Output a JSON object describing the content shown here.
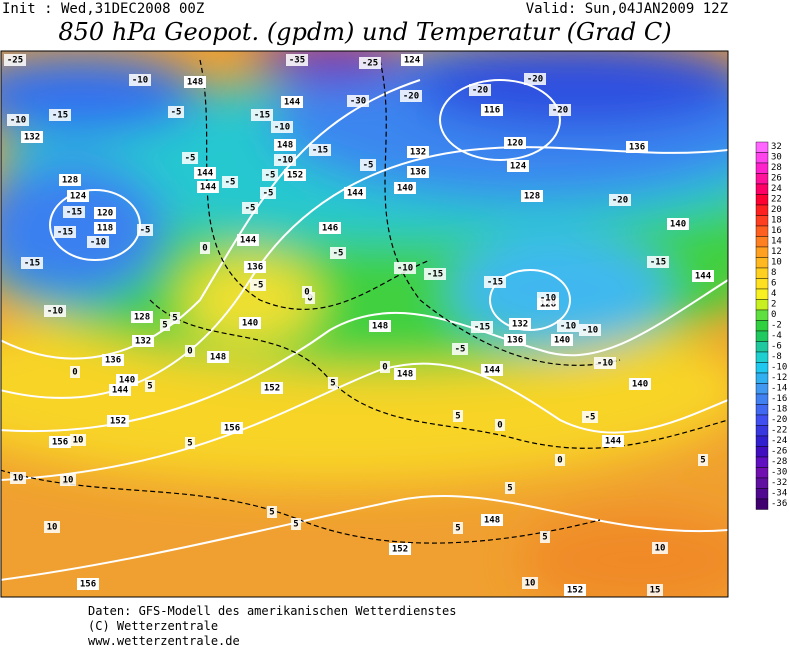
{
  "header": {
    "init": "Init : Wed,31DEC2008 00Z",
    "valid": "Valid: Sun,04JAN2009 12Z",
    "title": "850 hPa Geopot. (gpdm) und Temperatur (Grad C)"
  },
  "colorbar": {
    "levels": [
      32,
      30,
      28,
      26,
      24,
      22,
      20,
      18,
      16,
      14,
      12,
      10,
      8,
      6,
      4,
      2,
      0,
      -2,
      -4,
      -6,
      -8,
      -10,
      -12,
      -14,
      -16,
      -18,
      -20,
      -22,
      -24,
      -26,
      -28,
      -30,
      -32,
      -34,
      -36
    ],
    "colors": [
      "#ff66ff",
      "#ff44ee",
      "#ff22cc",
      "#ff1199",
      "#ff0066",
      "#ff0033",
      "#ff2020",
      "#ff4020",
      "#ff6020",
      "#ff8020",
      "#ffa020",
      "#ffb820",
      "#ffd020",
      "#ffe020",
      "#f8f020",
      "#c8f020",
      "#60e040",
      "#30d040",
      "#20c860",
      "#20c8a0",
      "#20d0d0",
      "#20c8f0",
      "#30b0f0",
      "#4098f0",
      "#4080f0",
      "#4068f0",
      "#4050f0",
      "#3838e0",
      "#3020d0",
      "#4010c0",
      "#6010c0",
      "#7010b0",
      "#6010a0",
      "#500890",
      "#400070"
    ]
  },
  "map": {
    "geopotential_labels": [
      148,
      144,
      132,
      128,
      124,
      120,
      118,
      144,
      144,
      148,
      152,
      144,
      136,
      140,
      148,
      146,
      144,
      140,
      136,
      132,
      116,
      120,
      124,
      128,
      136,
      140,
      144,
      128,
      132,
      136,
      140,
      144,
      148,
      148,
      152,
      156,
      152,
      156,
      144,
      140,
      136,
      132,
      128,
      148,
      152,
      152,
      156,
      140,
      144,
      124
    ],
    "temperature_labels": [
      -25,
      -35,
      -25,
      -30,
      -20,
      -20,
      -20,
      -20,
      -10,
      -10,
      -15,
      -5,
      -15,
      -10,
      -15,
      -10,
      -5,
      -5,
      -5,
      -5,
      -15,
      -15,
      -10,
      -5,
      -15,
      -10,
      -20,
      -15,
      -10,
      -15,
      -15,
      -10,
      -15,
      -10,
      -10,
      -10,
      -5,
      -5,
      -5,
      -5,
      0,
      0,
      0,
      5,
      5,
      0,
      5,
      0,
      5,
      5,
      10,
      10,
      10,
      10,
      5,
      5,
      5,
      5,
      5,
      10,
      10,
      15,
      5,
      5,
      0,
      0,
      -5,
      -5,
      0
    ]
  },
  "footer": {
    "line1": "Daten: GFS-Modell des amerikanischen Wetterdienstes",
    "line2": "(C) Wetterzentrale",
    "line3": "www.wetterzentrale.de"
  }
}
